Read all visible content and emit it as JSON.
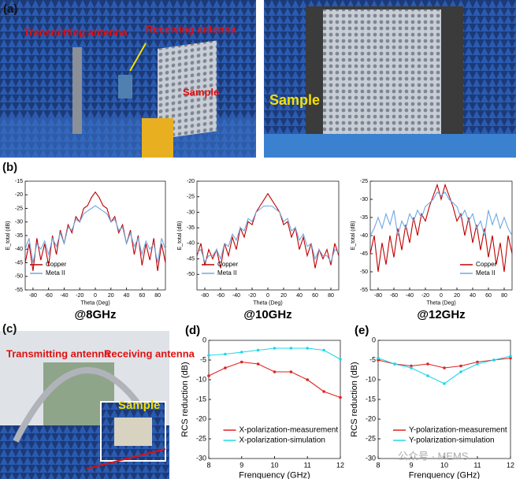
{
  "labels": {
    "a": "(a)",
    "tx_a": "Transmitting antenna",
    "rx_a": "Receiving antenna",
    "sample_a1": "Sample",
    "sample_a2": "Sample",
    "b": "(b)",
    "c": "(c)",
    "tx_c": "Transmitting antenna",
    "rx_c": "Receiving antenna",
    "sample_c": "Sample",
    "watermark": "公众号 · MEMS"
  },
  "chart_data": [
    {
      "type": "line",
      "caption": "@8GHz",
      "x_label": "Theta (Deg)",
      "y_label": "E_total (dB)",
      "xlim": [
        -90,
        90
      ],
      "xticks": [
        -80,
        -60,
        -40,
        -20,
        0,
        20,
        40,
        60,
        80
      ],
      "ylim": [
        -55,
        -15
      ],
      "yticks": [
        -15,
        -20,
        -25,
        -30,
        -35,
        -40,
        -45,
        -50,
        -55
      ],
      "legend": "lower left",
      "x": [
        -90,
        -85,
        -80,
        -75,
        -70,
        -65,
        -60,
        -55,
        -50,
        -45,
        -40,
        -35,
        -30,
        -25,
        -20,
        -15,
        -10,
        -5,
        0,
        5,
        10,
        15,
        20,
        25,
        30,
        35,
        40,
        45,
        50,
        55,
        60,
        65,
        70,
        75,
        80,
        85,
        90
      ],
      "series": [
        {
          "name": "Copper",
          "color": "#c00000",
          "values": [
            -45,
            -38,
            -48,
            -36,
            -44,
            -38,
            -46,
            -35,
            -42,
            -33,
            -38,
            -31,
            -34,
            -28,
            -30,
            -25,
            -24,
            -21,
            -19,
            -21,
            -24,
            -25,
            -30,
            -28,
            -34,
            -31,
            -38,
            -33,
            -42,
            -35,
            -46,
            -38,
            -44,
            -36,
            -48,
            -38,
            -45
          ]
        },
        {
          "name": "Meta II",
          "color": "#6fa8e0",
          "values": [
            -40,
            -36,
            -45,
            -38,
            -40,
            -37,
            -42,
            -36,
            -39,
            -34,
            -38,
            -32,
            -33,
            -29,
            -30,
            -27,
            -26,
            -25,
            -24,
            -25,
            -26,
            -27,
            -30,
            -29,
            -33,
            -32,
            -38,
            -34,
            -39,
            -36,
            -42,
            -37,
            -40,
            -38,
            -45,
            -36,
            -40
          ]
        }
      ]
    },
    {
      "type": "line",
      "caption": "@10GHz",
      "x_label": "Theta (Deg)",
      "y_label": "E_total (dB)",
      "xlim": [
        -90,
        90
      ],
      "xticks": [
        -80,
        -60,
        -40,
        -20,
        0,
        20,
        40,
        60,
        80
      ],
      "ylim": [
        -55,
        -20
      ],
      "yticks": [
        -20,
        -25,
        -30,
        -35,
        -40,
        -45,
        -50
      ],
      "legend": "lower left",
      "x": [
        -90,
        -85,
        -80,
        -75,
        -70,
        -65,
        -60,
        -55,
        -50,
        -45,
        -40,
        -35,
        -30,
        -25,
        -20,
        -15,
        -10,
        -5,
        0,
        5,
        10,
        15,
        20,
        25,
        30,
        35,
        40,
        45,
        50,
        55,
        60,
        65,
        70,
        75,
        80,
        85,
        90
      ],
      "series": [
        {
          "name": "Copper",
          "color": "#c00000",
          "values": [
            -44,
            -40,
            -47,
            -42,
            -45,
            -42,
            -48,
            -40,
            -44,
            -38,
            -42,
            -35,
            -38,
            -33,
            -34,
            -30,
            -28,
            -26,
            -24,
            -26,
            -28,
            -30,
            -34,
            -33,
            -38,
            -35,
            -42,
            -38,
            -44,
            -40,
            -48,
            -42,
            -45,
            -42,
            -47,
            -40,
            -44
          ]
        },
        {
          "name": "Meta II",
          "color": "#6fa8e0",
          "values": [
            -43,
            -42,
            -46,
            -44,
            -44,
            -42,
            -45,
            -40,
            -41,
            -37,
            -39,
            -35,
            -36,
            -32,
            -33,
            -30,
            -29,
            -28,
            -28,
            -28,
            -29,
            -30,
            -33,
            -32,
            -36,
            -35,
            -39,
            -37,
            -41,
            -40,
            -45,
            -42,
            -44,
            -44,
            -46,
            -42,
            -43
          ]
        }
      ]
    },
    {
      "type": "line",
      "caption": "@12GHz",
      "x_label": "Theta (Deg)",
      "y_label": "E_total (dB)",
      "xlim": [
        -90,
        90
      ],
      "xticks": [
        -80,
        -60,
        -40,
        -20,
        0,
        20,
        40,
        60,
        80
      ],
      "ylim": [
        -55,
        -25
      ],
      "yticks": [
        -25,
        -30,
        -35,
        -40,
        -45,
        -50,
        -55
      ],
      "legend": "lower right",
      "x": [
        -90,
        -85,
        -80,
        -75,
        -70,
        -65,
        -60,
        -55,
        -50,
        -45,
        -40,
        -35,
        -30,
        -25,
        -20,
        -15,
        -10,
        -5,
        0,
        5,
        10,
        15,
        20,
        25,
        30,
        35,
        40,
        45,
        50,
        55,
        60,
        65,
        70,
        75,
        80,
        85,
        90
      ],
      "series": [
        {
          "name": "Copper",
          "color": "#c00000",
          "values": [
            -45,
            -40,
            -50,
            -42,
            -48,
            -40,
            -46,
            -38,
            -44,
            -37,
            -42,
            -35,
            -40,
            -34,
            -36,
            -32,
            -29,
            -26,
            -30,
            -26,
            -29,
            -32,
            -36,
            -34,
            -40,
            -35,
            -42,
            -37,
            -44,
            -38,
            -46,
            -40,
            -48,
            -42,
            -50,
            -40,
            -45
          ]
        },
        {
          "name": "Meta II",
          "color": "#6fa8e0",
          "values": [
            -40,
            -38,
            -35,
            -38,
            -34,
            -37,
            -33,
            -40,
            -36,
            -38,
            -34,
            -36,
            -33,
            -35,
            -32,
            -31,
            -30,
            -28,
            -29,
            -28,
            -30,
            -31,
            -32,
            -35,
            -33,
            -36,
            -34,
            -38,
            -36,
            -40,
            -33,
            -37,
            -34,
            -38,
            -35,
            -38,
            -40
          ]
        }
      ]
    },
    {
      "type": "line",
      "label": "(d)",
      "markers": true,
      "x_label": "Frenquency (GHz)",
      "y_label": "RCS reduction (dB)",
      "xlim": [
        8,
        12
      ],
      "xticks": [
        8,
        9,
        10,
        11,
        12
      ],
      "ylim": [
        -30,
        0
      ],
      "yticks": [
        0,
        -5,
        -10,
        -15,
        -20,
        -25,
        -30
      ],
      "legend": "lower center",
      "x": [
        8,
        8.5,
        9,
        9.5,
        10,
        10.5,
        11,
        11.5,
        12
      ],
      "series": [
        {
          "name": "X-polarization-measurement",
          "color": "#e02020",
          "values": [
            -9,
            -7,
            -5.5,
            -6,
            -8,
            -8,
            -10,
            -13,
            -14.5
          ]
        },
        {
          "name": "X-polarization-simulation",
          "color": "#20d8e8",
          "values": [
            -3.8,
            -3.5,
            -3,
            -2.5,
            -2,
            -2,
            -2,
            -2.5,
            -4.8
          ]
        }
      ]
    },
    {
      "type": "line",
      "label": "(e)",
      "markers": true,
      "x_label": "Frenquency (GHz)",
      "y_label": "RCS reduction (dB)",
      "xlim": [
        8,
        12
      ],
      "xticks": [
        8,
        9,
        10,
        11,
        12
      ],
      "ylim": [
        -30,
        0
      ],
      "yticks": [
        0,
        -5,
        -10,
        -15,
        -20,
        -25,
        -30
      ],
      "legend": "lower center",
      "x": [
        8,
        8.5,
        9,
        9.5,
        10,
        10.5,
        11,
        11.5,
        12
      ],
      "series": [
        {
          "name": "Y-polarization-measurement",
          "color": "#e02020",
          "values": [
            -5,
            -6,
            -6.5,
            -6,
            -7,
            -6.5,
            -5.5,
            -5,
            -4.5
          ]
        },
        {
          "name": "Y-polarization-simulation",
          "color": "#20d8e8",
          "values": [
            -4.5,
            -6,
            -7,
            -9,
            -11,
            -8,
            -6,
            -5,
            -4
          ]
        }
      ]
    }
  ]
}
